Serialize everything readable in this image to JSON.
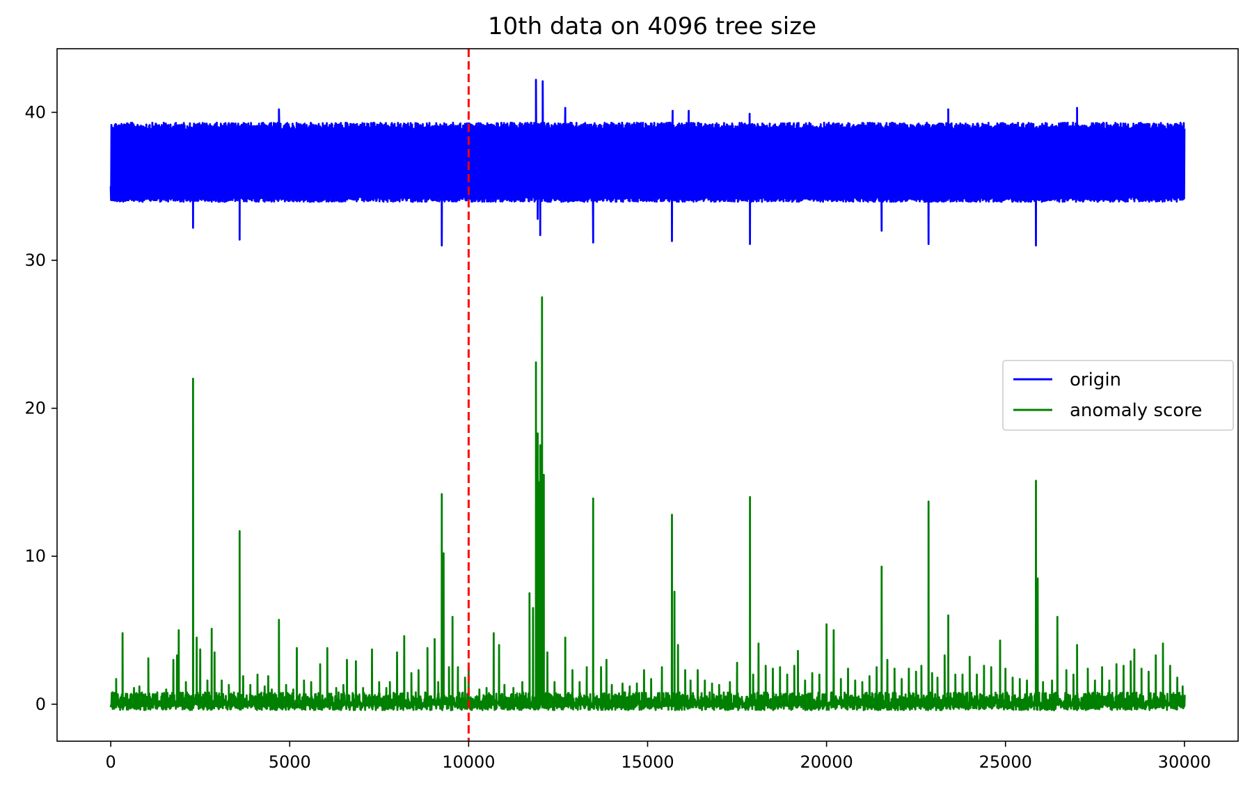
{
  "chart_data": {
    "type": "line",
    "title": "10th data on 4096 tree size",
    "xlabel": "",
    "ylabel": "",
    "xlim": [
      -1500,
      31500
    ],
    "ylim": [
      -2.5,
      44.3
    ],
    "xticks": [
      0,
      5000,
      10000,
      15000,
      20000,
      25000,
      30000
    ],
    "yticks": [
      0,
      10,
      20,
      30,
      40
    ],
    "grid": false,
    "legend_position": "center right",
    "vline": {
      "x": 10000,
      "color": "#ff0000",
      "style": "dashed"
    },
    "series": [
      {
        "name": "origin",
        "color": "#0000ff",
        "band": [
          34.3,
          39.3
        ],
        "start": 35,
        "dips": [
          [
            2300,
            32.2
          ],
          [
            3600,
            31.4
          ],
          [
            9250,
            31.0
          ],
          [
            11930,
            32.8
          ],
          [
            12000,
            31.7
          ],
          [
            13480,
            31.2
          ],
          [
            15680,
            31.3
          ],
          [
            17860,
            31.1
          ],
          [
            21540,
            32.0
          ],
          [
            22850,
            31.1
          ],
          [
            25850,
            31.0
          ]
        ],
        "peaks": [
          [
            4700,
            40.2
          ],
          [
            11880,
            42.2
          ],
          [
            12070,
            42.1
          ],
          [
            12700,
            40.3
          ],
          [
            15700,
            40.1
          ],
          [
            16150,
            40.1
          ],
          [
            17850,
            39.9
          ],
          [
            23400,
            40.2
          ],
          [
            27000,
            40.3
          ]
        ]
      },
      {
        "name": "anomaly score",
        "color": "#008000",
        "baseline": -0.4,
        "spikes": [
          [
            50,
            0.8
          ],
          [
            150,
            1.7
          ],
          [
            330,
            4.8
          ],
          [
            650,
            1.1
          ],
          [
            800,
            1.2
          ],
          [
            1050,
            3.1
          ],
          [
            1300,
            0.8
          ],
          [
            1550,
            1.0
          ],
          [
            1750,
            3.0
          ],
          [
            1850,
            3.3
          ],
          [
            1900,
            5.0
          ],
          [
            2100,
            1.5
          ],
          [
            2300,
            22.0
          ],
          [
            2400,
            4.5
          ],
          [
            2500,
            3.7
          ],
          [
            2700,
            1.6
          ],
          [
            2820,
            5.1
          ],
          [
            2900,
            3.5
          ],
          [
            3100,
            1.6
          ],
          [
            3300,
            1.3
          ],
          [
            3600,
            11.7
          ],
          [
            3700,
            1.9
          ],
          [
            3900,
            1.3
          ],
          [
            4100,
            2.0
          ],
          [
            4300,
            1.2
          ],
          [
            4400,
            1.9
          ],
          [
            4500,
            1.0
          ],
          [
            4700,
            5.7
          ],
          [
            4900,
            1.3
          ],
          [
            5100,
            1.0
          ],
          [
            5200,
            3.8
          ],
          [
            5400,
            1.6
          ],
          [
            5600,
            1.5
          ],
          [
            5850,
            2.7
          ],
          [
            6050,
            3.8
          ],
          [
            6300,
            1.1
          ],
          [
            6500,
            1.3
          ],
          [
            6600,
            3.0
          ],
          [
            6850,
            2.9
          ],
          [
            7050,
            1.1
          ],
          [
            7300,
            3.7
          ],
          [
            7500,
            1.5
          ],
          [
            7700,
            1.1
          ],
          [
            7800,
            1.5
          ],
          [
            8000,
            3.5
          ],
          [
            8200,
            4.6
          ],
          [
            8400,
            2.1
          ],
          [
            8600,
            2.3
          ],
          [
            8850,
            3.8
          ],
          [
            9050,
            4.4
          ],
          [
            9150,
            1.5
          ],
          [
            9250,
            14.2
          ],
          [
            9300,
            10.2
          ],
          [
            9450,
            2.5
          ],
          [
            9550,
            5.9
          ],
          [
            9700,
            2.5
          ],
          [
            9900,
            1.8
          ],
          [
            10000,
            2.5
          ],
          [
            10300,
            1.0
          ],
          [
            10500,
            1.1
          ],
          [
            10700,
            4.8
          ],
          [
            10850,
            4.0
          ],
          [
            11000,
            1.3
          ],
          [
            11250,
            1.1
          ],
          [
            11500,
            1.5
          ],
          [
            11700,
            7.5
          ],
          [
            11800,
            6.5
          ],
          [
            11880,
            23.1
          ],
          [
            11930,
            18.3
          ],
          [
            11970,
            15.0
          ],
          [
            12000,
            17.5
          ],
          [
            12050,
            27.5
          ],
          [
            12100,
            15.5
          ],
          [
            12200,
            3.5
          ],
          [
            12400,
            1.5
          ],
          [
            12700,
            4.5
          ],
          [
            12900,
            2.3
          ],
          [
            13100,
            1.5
          ],
          [
            13300,
            2.5
          ],
          [
            13480,
            13.9
          ],
          [
            13700,
            2.5
          ],
          [
            13850,
            3.0
          ],
          [
            14000,
            1.3
          ],
          [
            14300,
            1.4
          ],
          [
            14500,
            1.2
          ],
          [
            14700,
            1.4
          ],
          [
            14900,
            2.3
          ],
          [
            15100,
            1.7
          ],
          [
            15400,
            2.5
          ],
          [
            15680,
            12.8
          ],
          [
            15750,
            7.6
          ],
          [
            15850,
            4.0
          ],
          [
            16050,
            2.3
          ],
          [
            16200,
            1.6
          ],
          [
            16400,
            2.3
          ],
          [
            16600,
            1.6
          ],
          [
            16800,
            1.4
          ],
          [
            17000,
            1.3
          ],
          [
            17300,
            1.5
          ],
          [
            17500,
            2.8
          ],
          [
            17860,
            14.0
          ],
          [
            17950,
            2.0
          ],
          [
            18100,
            4.1
          ],
          [
            18300,
            2.6
          ],
          [
            18500,
            2.4
          ],
          [
            18700,
            2.5
          ],
          [
            18900,
            2.0
          ],
          [
            19100,
            2.6
          ],
          [
            19200,
            3.6
          ],
          [
            19400,
            1.6
          ],
          [
            19600,
            2.1
          ],
          [
            19800,
            2.0
          ],
          [
            20000,
            5.4
          ],
          [
            20200,
            5.0
          ],
          [
            20400,
            1.7
          ],
          [
            20600,
            2.4
          ],
          [
            20800,
            1.6
          ],
          [
            21000,
            1.5
          ],
          [
            21200,
            1.9
          ],
          [
            21400,
            2.5
          ],
          [
            21540,
            9.3
          ],
          [
            21700,
            3.0
          ],
          [
            21900,
            2.4
          ],
          [
            22100,
            1.7
          ],
          [
            22300,
            2.4
          ],
          [
            22500,
            2.2
          ],
          [
            22650,
            2.6
          ],
          [
            22850,
            13.7
          ],
          [
            22950,
            2.1
          ],
          [
            23100,
            1.8
          ],
          [
            23300,
            3.3
          ],
          [
            23400,
            6.0
          ],
          [
            23600,
            2.0
          ],
          [
            23800,
            2.0
          ],
          [
            24000,
            3.2
          ],
          [
            24200,
            2.0
          ],
          [
            24400,
            2.6
          ],
          [
            24600,
            2.5
          ],
          [
            24850,
            4.3
          ],
          [
            25000,
            2.4
          ],
          [
            25200,
            1.8
          ],
          [
            25400,
            1.7
          ],
          [
            25600,
            1.6
          ],
          [
            25850,
            15.1
          ],
          [
            25900,
            8.5
          ],
          [
            26050,
            1.5
          ],
          [
            26300,
            1.6
          ],
          [
            26450,
            5.9
          ],
          [
            26700,
            2.3
          ],
          [
            26900,
            2.0
          ],
          [
            27000,
            4.0
          ],
          [
            27300,
            2.4
          ],
          [
            27500,
            1.6
          ],
          [
            27700,
            2.5
          ],
          [
            27900,
            1.6
          ],
          [
            28100,
            2.7
          ],
          [
            28300,
            2.6
          ],
          [
            28500,
            2.9
          ],
          [
            28600,
            3.7
          ],
          [
            28800,
            2.4
          ],
          [
            29000,
            2.2
          ],
          [
            29200,
            3.3
          ],
          [
            29400,
            4.1
          ],
          [
            29600,
            2.6
          ],
          [
            29800,
            1.8
          ],
          [
            29950,
            1.2
          ]
        ]
      }
    ]
  }
}
